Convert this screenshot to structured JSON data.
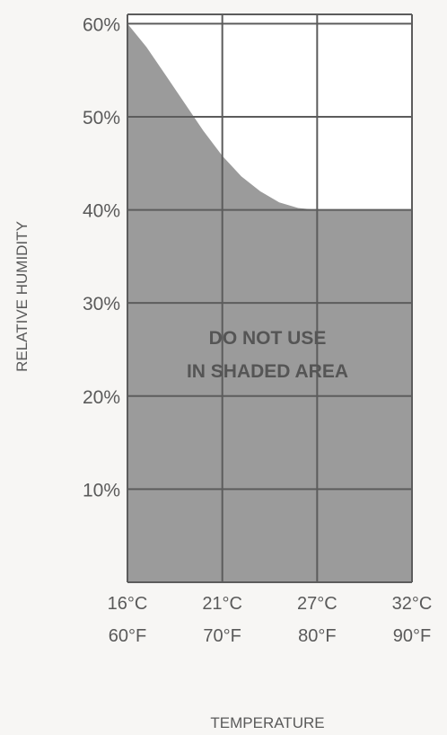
{
  "chart_data": {
    "type": "area",
    "ylabel": "RELATIVE HUMIDITY",
    "xlabel": "TEMPERATURE",
    "annotation": [
      "DO NOT USE",
      "IN SHADED AREA"
    ],
    "x_ticks": [
      {
        "celsius": "16°C",
        "fahrenheit": "60°F",
        "value": 60
      },
      {
        "celsius": "21°C",
        "fahrenheit": "70°F",
        "value": 70
      },
      {
        "celsius": "27°C",
        "fahrenheit": "80°F",
        "value": 80
      },
      {
        "celsius": "32°C",
        "fahrenheit": "90°F",
        "value": 90
      }
    ],
    "y_ticks": [
      {
        "label": "10%",
        "value": 10
      },
      {
        "label": "20%",
        "value": 20
      },
      {
        "label": "30%",
        "value": 30
      },
      {
        "label": "40%",
        "value": 40
      },
      {
        "label": "50%",
        "value": 50
      },
      {
        "label": "60%",
        "value": 60
      }
    ],
    "xlim": [
      60,
      90
    ],
    "ylim": [
      0,
      61
    ],
    "grid": true,
    "shaded_boundary": {
      "x": [
        60,
        62,
        64,
        66,
        68,
        70,
        72,
        74,
        76,
        78,
        80,
        90
      ],
      "y": [
        60,
        57.5,
        54.5,
        51.5,
        48.5,
        45.8,
        43.6,
        42,
        40.8,
        40.2,
        40,
        40
      ]
    },
    "colors": {
      "shaded": "#9b9b9b",
      "grid": "#5c5c5c",
      "unshaded": "#ffffff",
      "text": "#5a5a5a",
      "annotation": "#555555"
    }
  }
}
